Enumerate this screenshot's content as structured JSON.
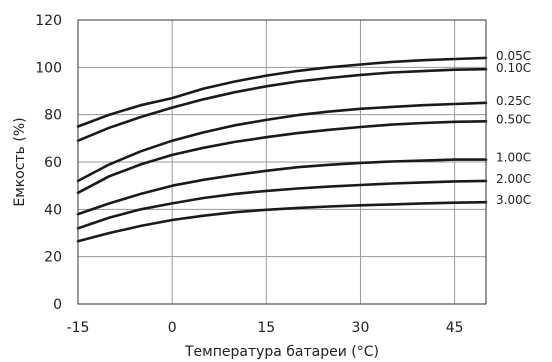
{
  "chart_data": {
    "type": "line",
    "xlabel": "Температура батареи (°C)",
    "ylabel": "Емкость (%)",
    "xlim": [
      -15,
      50
    ],
    "ylim": [
      0,
      120
    ],
    "x_ticks": [
      -15,
      0,
      15,
      30,
      45
    ],
    "y_ticks": [
      0,
      20,
      40,
      60,
      80,
      100,
      120
    ],
    "grid": true,
    "x": [
      -15,
      -10,
      -5,
      0,
      5,
      10,
      15,
      20,
      25,
      30,
      35,
      40,
      45,
      50
    ],
    "series": [
      {
        "name": "0.05C",
        "values": [
          75,
          80,
          84,
          87,
          91,
          94,
          96.5,
          98.5,
          100,
          101.2,
          102.3,
          103,
          103.5,
          104
        ]
      },
      {
        "name": "0.10C",
        "values": [
          69,
          74.5,
          79,
          83,
          86.5,
          89.5,
          92,
          94,
          95.5,
          96.8,
          97.8,
          98.4,
          99,
          99.2
        ]
      },
      {
        "name": "0.25C",
        "values": [
          52,
          59,
          64.5,
          69,
          72.5,
          75.5,
          77.8,
          79.8,
          81.3,
          82.5,
          83.3,
          84,
          84.5,
          85
        ]
      },
      {
        "name": "0.50C",
        "values": [
          47,
          54,
          59,
          63,
          66,
          68.5,
          70.5,
          72.2,
          73.6,
          74.8,
          75.8,
          76.5,
          77,
          77.2
        ]
      },
      {
        "name": "1.00C",
        "values": [
          38,
          42.5,
          46.5,
          50,
          52.5,
          54.5,
          56.3,
          57.8,
          58.8,
          59.6,
          60.2,
          60.6,
          61,
          61
        ]
      },
      {
        "name": "2.00C",
        "values": [
          32,
          36.5,
          40,
          42.5,
          44.8,
          46.5,
          47.8,
          48.8,
          49.6,
          50.3,
          50.9,
          51.4,
          51.8,
          52
        ]
      },
      {
        "name": "3.00C",
        "values": [
          26.5,
          30,
          33,
          35.5,
          37.3,
          38.8,
          39.8,
          40.6,
          41.2,
          41.7,
          42.1,
          42.5,
          42.8,
          43
        ]
      }
    ]
  }
}
